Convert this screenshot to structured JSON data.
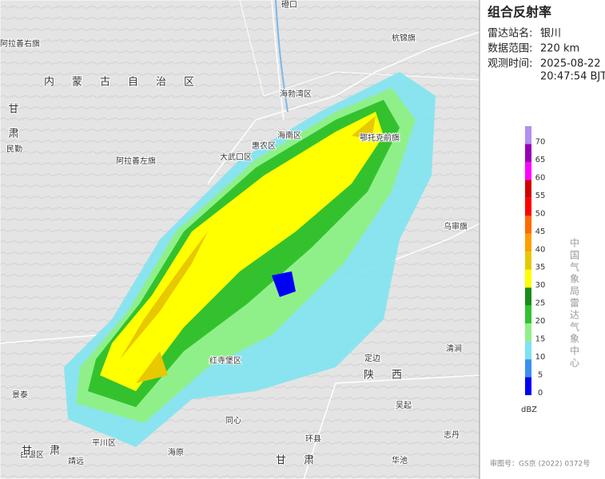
{
  "panel": {
    "title": "组合反射率",
    "rows": [
      {
        "label": "雷达站名:",
        "lines": [
          "银川"
        ]
      },
      {
        "label": "数据范围:",
        "lines": [
          "220 km"
        ]
      },
      {
        "label": "观测时间:",
        "lines": [
          "2025-08-22",
          "20:47:54 BJT"
        ]
      }
    ]
  },
  "legend": {
    "unit": "dBZ",
    "range": [
      0,
      75
    ],
    "ticks": [
      0,
      5,
      10,
      15,
      20,
      25,
      30,
      35,
      40,
      45,
      50,
      55,
      60,
      65,
      70
    ],
    "colors": [
      "#0000f6",
      "#3c8ff0",
      "#7fe3f0",
      "#8ff08a",
      "#33c22e",
      "#1a8a1a",
      "#ffff00",
      "#e8c800",
      "#ff9e00",
      "#ff6a00",
      "#ff0000",
      "#d20000",
      "#ff00ff",
      "#9600b4",
      "#b28ff0"
    ],
    "source": "中国气象局雷达气象中心"
  },
  "map_labels": [
    "磴口",
    "阿拉善右旗",
    "杭锦旗",
    "内蒙古自治区",
    "海勃湾区",
    "海南区",
    "惠农区",
    "大武口区",
    "阿拉善左旗",
    "鄂托克前旗",
    "甘肃",
    "民勤",
    "乌审旗",
    "清涧",
    "定边",
    "陕西",
    "吴起",
    "志丹",
    "华池",
    "甘肃",
    "环县",
    "同心",
    "海原",
    "平川区",
    "景泰",
    "白银区",
    "靖远",
    "甘肃",
    "红寺堡区"
  ],
  "approval": "审图号：GS京 (2022) 0372号"
}
